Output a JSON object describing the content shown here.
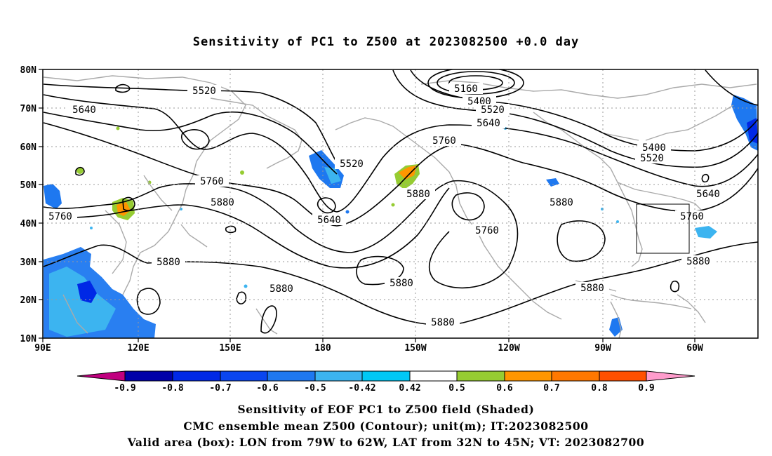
{
  "title": "Sensitivity of PC1 to Z500 at 2023082500 +0.0 day",
  "map": {
    "lat_labels": [
      "80N",
      "70N",
      "60N",
      "50N",
      "40N",
      "30N",
      "20N",
      "10N"
    ],
    "lon_labels": [
      "90E",
      "120E",
      "150E",
      "180",
      "150W",
      "120W",
      "90W",
      "60W"
    ],
    "contour_labels": [
      {
        "text": "5160"
      },
      {
        "text": "5400"
      },
      {
        "text": "5400"
      },
      {
        "text": "5520"
      },
      {
        "text": "5520"
      },
      {
        "text": "5520"
      },
      {
        "text": "5520"
      },
      {
        "text": "5640"
      },
      {
        "text": "5640"
      },
      {
        "text": "5640"
      },
      {
        "text": "5640"
      },
      {
        "text": "5760"
      },
      {
        "text": "5760"
      },
      {
        "text": "5760"
      },
      {
        "text": "5760"
      },
      {
        "text": "5760"
      },
      {
        "text": "5880"
      },
      {
        "text": "5880"
      },
      {
        "text": "5880"
      },
      {
        "text": "5880"
      },
      {
        "text": "5880"
      },
      {
        "text": "5880"
      },
      {
        "text": "5880"
      },
      {
        "text": "5880"
      }
    ],
    "valid_box": {
      "lon_from": "79W",
      "lon_to": "62W",
      "lat_from": "32N",
      "lat_to": "45N"
    }
  },
  "colorbar": {
    "colors": [
      "#c0007f",
      "#0000a8",
      "#0028e6",
      "#0a46f0",
      "#1e78f0",
      "#3cb4f0",
      "#00c8f5",
      "#ffffff",
      "#96cc32",
      "#ff9600",
      "#ff7800",
      "#ff5000",
      "#ff2800",
      "#ff0000",
      "#ff9ccc"
    ],
    "labels": [
      "-0.9",
      "-0.8",
      "-0.7",
      "-0.6",
      "-0.5",
      "-0.42",
      "0.42",
      "0.5",
      "0.6",
      "0.7",
      "0.8",
      "0.9"
    ]
  },
  "caption": {
    "line1": "Sensitivity of EOF PC1 to Z500 field (Shaded)",
    "line2": "CMC ensemble mean Z500 (Contour); unit(m); IT:2023082500",
    "line3": "Valid area (box): LON from 79W to 62W, LAT from 32N to 45N; VT: 2023082700"
  }
}
